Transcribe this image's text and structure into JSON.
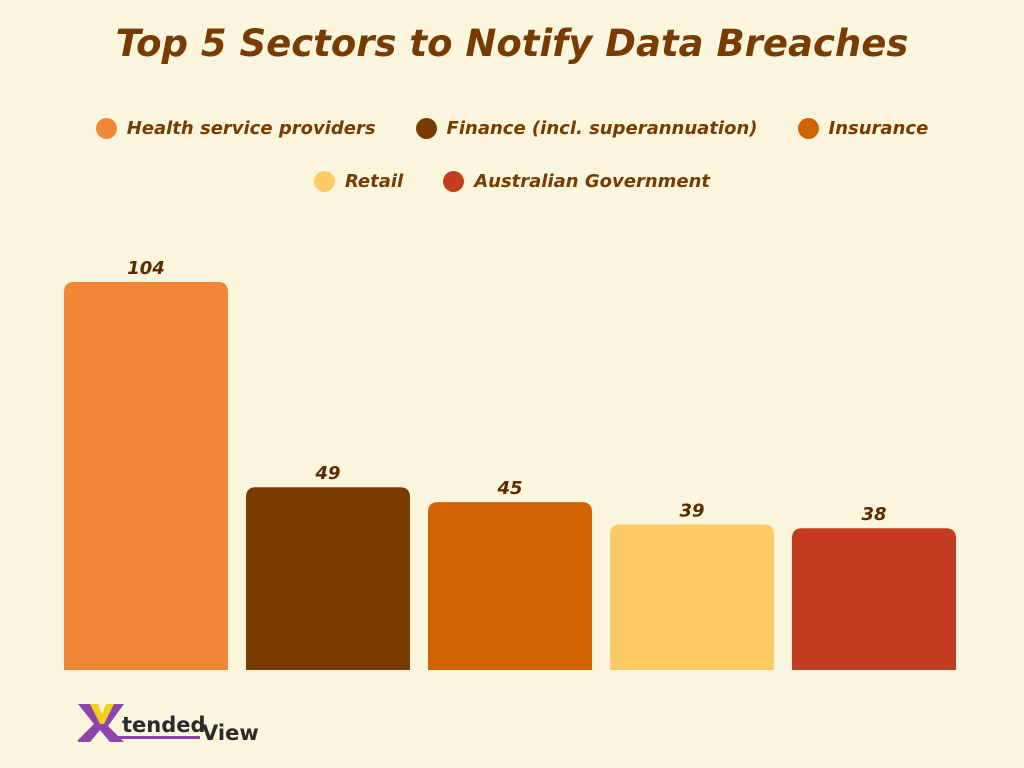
{
  "chart_data": {
    "type": "bar",
    "title": "Top 5 Sectors to Notify Data Breaches",
    "categories": [
      "Health service providers",
      "Finance (incl. superannuation)",
      "Insurance",
      "Retail",
      "Australian Government"
    ],
    "values": [
      104,
      49,
      45,
      39,
      38
    ],
    "colors": [
      "#ef8737",
      "#7a3b00",
      "#cf6300",
      "#fdca66",
      "#c33d21"
    ],
    "legend": "top",
    "grid": false,
    "ylim": [
      0,
      104
    ]
  },
  "logo": {
    "text": "XtendedView"
  }
}
